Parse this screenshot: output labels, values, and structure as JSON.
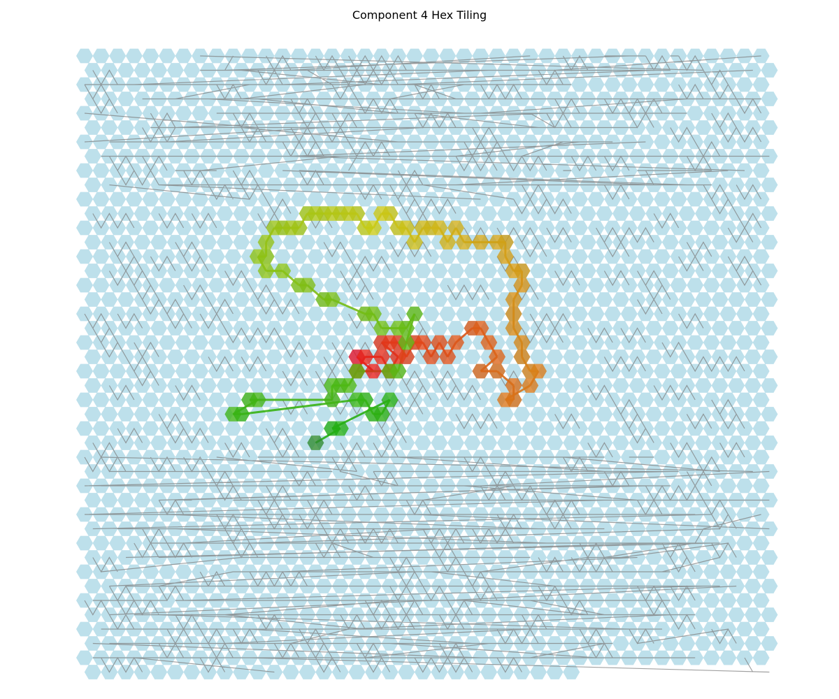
{
  "title": "Component 4 Hex Tiling",
  "colors": {
    "background_hex": "#add8e6",
    "background_edge": "#808080"
  },
  "grid": {
    "cols": 42,
    "rows": 44,
    "last_row_cols": 30
  },
  "highlight_path": {
    "start_color": "#e8132a",
    "end_color": "#2e8b2e",
    "cells": [
      [
        33,
        21
      ],
      [
        35,
        22
      ],
      [
        33,
        22
      ],
      [
        34,
        21
      ],
      [
        36,
        21
      ],
      [
        37,
        22
      ],
      [
        38,
        21
      ],
      [
        36,
        20
      ],
      [
        37,
        20
      ],
      [
        38,
        20
      ],
      [
        39,
        21
      ],
      [
        40,
        20
      ],
      [
        41,
        20
      ],
      [
        42,
        21
      ],
      [
        43,
        20
      ],
      [
        44,
        21
      ],
      [
        45,
        20
      ],
      [
        47,
        19
      ],
      [
        48,
        19
      ],
      [
        49,
        20
      ],
      [
        50,
        21
      ],
      [
        48,
        22
      ],
      [
        50,
        22
      ],
      [
        52,
        23
      ],
      [
        52,
        24
      ],
      [
        51,
        24
      ],
      [
        54,
        23
      ],
      [
        55,
        22
      ],
      [
        54,
        22
      ],
      [
        53,
        21
      ],
      [
        53,
        20
      ],
      [
        52,
        19
      ],
      [
        52,
        18
      ],
      [
        52,
        17
      ],
      [
        53,
        16
      ],
      [
        53,
        15
      ],
      [
        52,
        15
      ],
      [
        51,
        14
      ],
      [
        51,
        13
      ],
      [
        50,
        13
      ],
      [
        48,
        13
      ],
      [
        46,
        13
      ],
      [
        45,
        12
      ],
      [
        44,
        13
      ],
      [
        43,
        12
      ],
      [
        42,
        12
      ],
      [
        41,
        12
      ],
      [
        40,
        13
      ],
      [
        39,
        12
      ],
      [
        38,
        12
      ],
      [
        37,
        11
      ],
      [
        36,
        11
      ],
      [
        35,
        12
      ],
      [
        34,
        12
      ],
      [
        33,
        11
      ],
      [
        32,
        11
      ],
      [
        31,
        11
      ],
      [
        30,
        11
      ],
      [
        29,
        11
      ],
      [
        28,
        11
      ],
      [
        27,
        11
      ],
      [
        26,
        12
      ],
      [
        25,
        12
      ],
      [
        24,
        12
      ],
      [
        23,
        12
      ],
      [
        22,
        13
      ],
      [
        22,
        14
      ],
      [
        21,
        14
      ],
      [
        22,
        15
      ],
      [
        24,
        15
      ],
      [
        26,
        16
      ],
      [
        27,
        16
      ],
      [
        29,
        17
      ],
      [
        30,
        17
      ],
      [
        34,
        18
      ],
      [
        35,
        18
      ],
      [
        36,
        19
      ],
      [
        38,
        19
      ],
      [
        39,
        19
      ],
      [
        40,
        18
      ],
      [
        39,
        20
      ],
      [
        38,
        22
      ],
      [
        37,
        22
      ],
      [
        33,
        22
      ],
      [
        32,
        23
      ],
      [
        31,
        23
      ],
      [
        30,
        23
      ],
      [
        30,
        24
      ],
      [
        20,
        24
      ],
      [
        21,
        24
      ],
      [
        18,
        25
      ],
      [
        19,
        25
      ],
      [
        33,
        24
      ],
      [
        34,
        24
      ],
      [
        35,
        25
      ],
      [
        36,
        25
      ],
      [
        37,
        24
      ],
      [
        30,
        26
      ],
      [
        31,
        26
      ],
      [
        28,
        27
      ]
    ]
  }
}
